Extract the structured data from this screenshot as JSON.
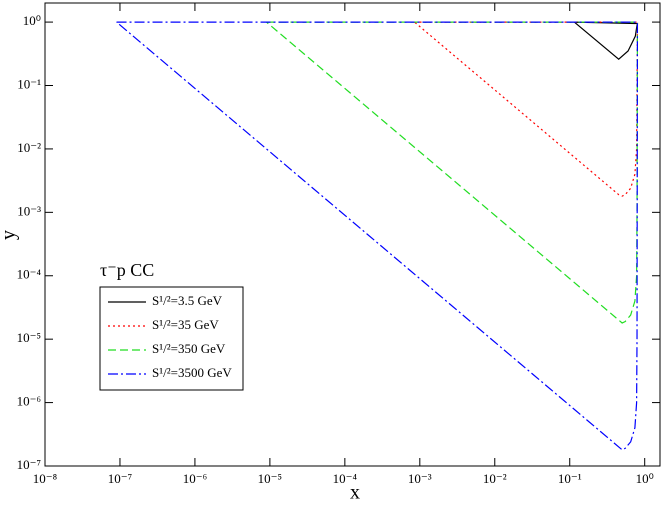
{
  "chart_data": {
    "type": "line",
    "xlabel": "x",
    "ylabel": "y",
    "annotation": "τ⁻p CC",
    "xscale": "log",
    "yscale": "log",
    "xlim": [
      1e-08,
      1.6
    ],
    "ylim": [
      1e-07,
      2
    ],
    "xticks": [
      {
        "value": 1e-08,
        "label": "10⁻⁸"
      },
      {
        "value": 1e-07,
        "label": "10⁻⁷"
      },
      {
        "value": 1e-06,
        "label": "10⁻⁶"
      },
      {
        "value": 1e-05,
        "label": "10⁻⁵"
      },
      {
        "value": 0.0001,
        "label": "10⁻⁴"
      },
      {
        "value": 0.001,
        "label": "10⁻³"
      },
      {
        "value": 0.01,
        "label": "10⁻²"
      },
      {
        "value": 0.1,
        "label": "10⁻¹"
      },
      {
        "value": 1,
        "label": "10⁰"
      }
    ],
    "yticks": [
      {
        "value": 1,
        "label": "10⁰"
      },
      {
        "value": 0.1,
        "label": "10⁻¹"
      },
      {
        "value": 0.01,
        "label": "10⁻²"
      },
      {
        "value": 0.001,
        "label": "10⁻³"
      },
      {
        "value": 0.0001,
        "label": "10⁻⁴"
      },
      {
        "value": 1e-05,
        "label": "10⁻⁵"
      },
      {
        "value": 1e-06,
        "label": "10⁻⁶"
      },
      {
        "value": 1e-07,
        "label": "10⁻⁷"
      }
    ],
    "series": [
      {
        "name": "S¹/²=3.5 GeV",
        "color": "#000000",
        "dash": "none",
        "x": [
          0.115,
          0.8,
          0.79,
          0.75,
          0.6,
          0.45,
          0.115
        ],
        "values": [
          1,
          0.95,
          0.9,
          0.6,
          0.35,
          0.26,
          1
        ]
      },
      {
        "name": "S¹/²=35 GeV",
        "color": "#ff0000",
        "dash": "2,3",
        "x": [
          0.00085,
          0.8,
          0.79,
          0.78,
          0.74,
          0.65,
          0.55,
          0.5,
          0.45,
          0.00085
        ],
        "values": [
          1,
          1,
          0.1,
          0.01,
          0.004,
          0.0024,
          0.0019,
          0.0018,
          0.0019,
          1
        ]
      },
      {
        "name": "S¹/²=350 GeV",
        "color": "#22dd22",
        "dash": "8,4",
        "x": [
          9e-06,
          0.8,
          0.79,
          0.78,
          0.74,
          0.65,
          0.55,
          0.5,
          0.45,
          9e-06
        ],
        "values": [
          1,
          1,
          0.001,
          0.0001,
          4e-05,
          2.4e-05,
          1.9e-05,
          1.8e-05,
          2e-05,
          1
        ]
      },
      {
        "name": "S¹/²=3500 GeV",
        "color": "#0000ff",
        "dash": "10,3,2,3",
        "x": [
          9e-08,
          0.8,
          0.79,
          0.78,
          0.74,
          0.65,
          0.55,
          0.5,
          0.45,
          9e-08
        ],
        "values": [
          1,
          1,
          1e-05,
          1e-06,
          4e-07,
          2.4e-07,
          1.9e-07,
          1.8e-07,
          2e-07,
          1
        ]
      }
    ]
  }
}
